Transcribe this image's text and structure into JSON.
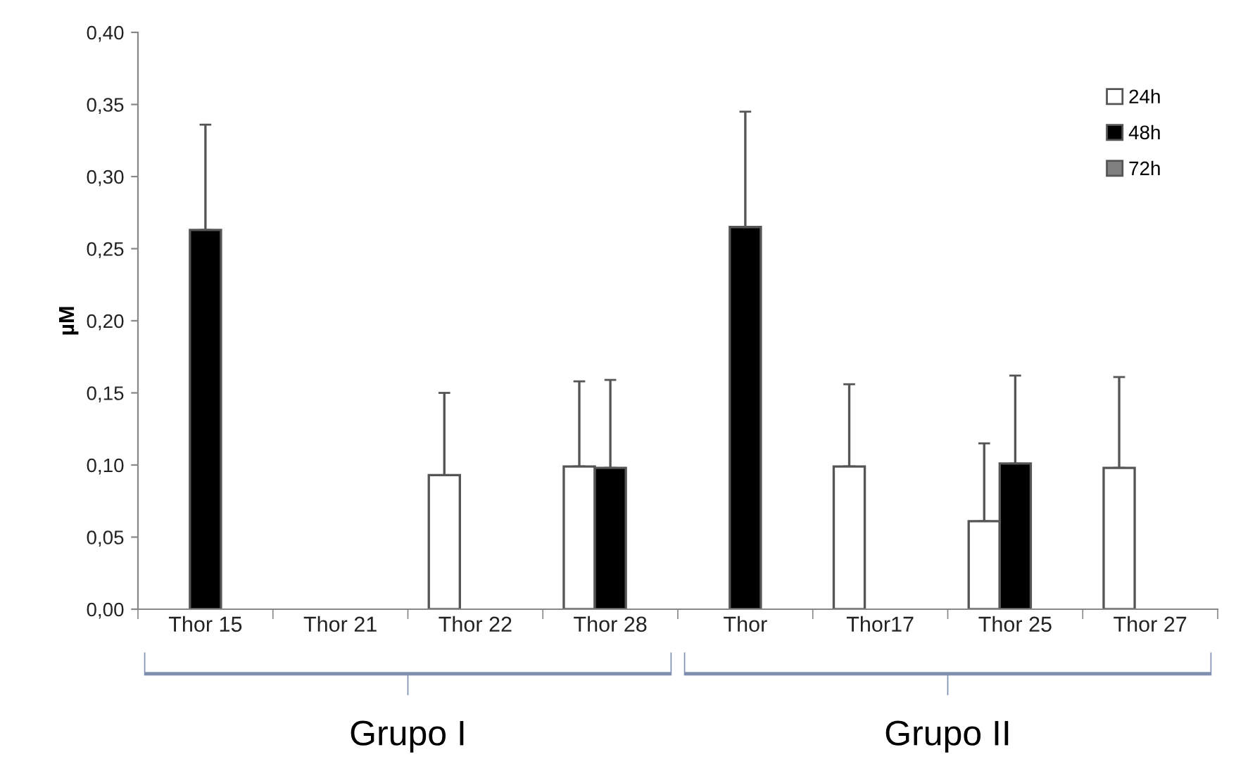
{
  "chart_data": {
    "type": "bar",
    "ylabel": "µM",
    "categories": [
      "Thor 15",
      "Thor 21",
      "Thor 22",
      "Thor 28",
      "Thor",
      "Thor17",
      "Thor 25",
      "Thor 27"
    ],
    "series": [
      {
        "name": "24h",
        "color": "#ffffff",
        "values": [
          null,
          null,
          0.093,
          0.099,
          null,
          0.099,
          0.061,
          0.098
        ],
        "errors": [
          null,
          null,
          [
            0.093,
            0.15
          ],
          [
            0.099,
            0.158
          ],
          null,
          [
            0.099,
            0.156
          ],
          [
            0.061,
            0.115
          ],
          [
            0.098,
            0.161
          ]
        ]
      },
      {
        "name": "48h",
        "color": "#000000",
        "values": [
          0.263,
          null,
          null,
          0.098,
          0.265,
          null,
          0.101,
          null
        ],
        "errors": [
          [
            0.263,
            0.336
          ],
          null,
          null,
          [
            0.098,
            0.159
          ],
          [
            0.265,
            0.345
          ],
          null,
          [
            0.101,
            0.162
          ],
          null
        ]
      },
      {
        "name": "72h",
        "color": "#808080",
        "values": [
          null,
          null,
          null,
          null,
          null,
          null,
          null,
          null
        ]
      }
    ],
    "ylim": [
      0,
      0.4
    ],
    "yticks": [
      {
        "value": 0,
        "label": "0,00"
      },
      {
        "value": 0.05,
        "label": "0,05"
      },
      {
        "value": 0.1,
        "label": "0,10"
      },
      {
        "value": 0.15,
        "label": "0,15"
      },
      {
        "value": 0.2,
        "label": "0,20"
      },
      {
        "value": 0.25,
        "label": "0,25"
      },
      {
        "value": 0.3,
        "label": "0,30"
      },
      {
        "value": 0.35,
        "label": "0,35"
      },
      {
        "value": 0.4,
        "label": "0,40"
      }
    ],
    "grid": false,
    "legend": "top right",
    "annotations": [
      "Grupo I",
      "Grupo II"
    ]
  }
}
